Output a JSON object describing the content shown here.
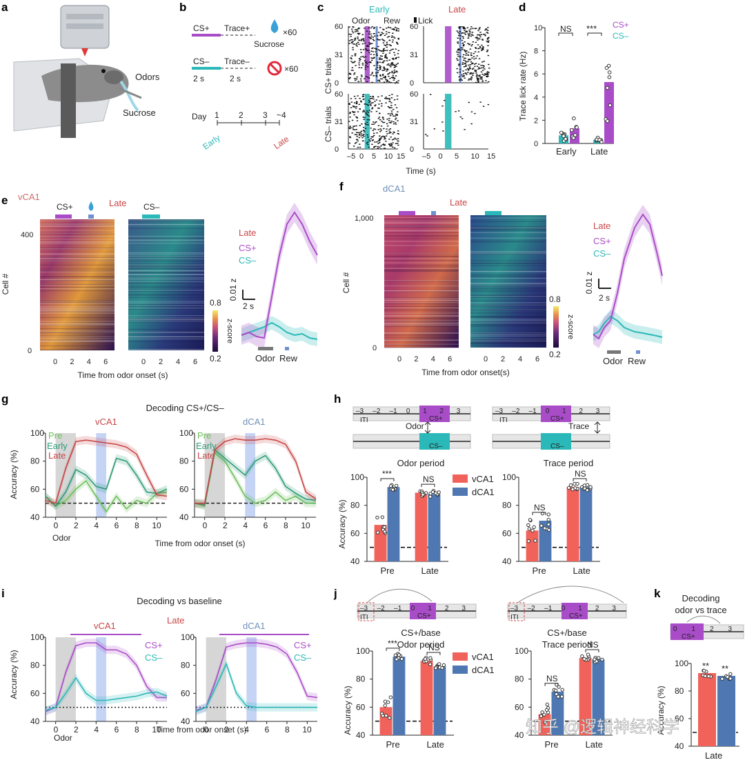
{
  "panels": {
    "a": {
      "letter": "a",
      "odors": "Odors",
      "sucrose": "Sucrose"
    },
    "b": {
      "letter": "b",
      "cs_plus": "CS+",
      "trace_plus": "Trace+",
      "x60a": "×60",
      "sucrose": "Sucrose",
      "cs_minus": "CS–",
      "trace_minus": "Trace–",
      "x60b": "×60",
      "dur1": "2 s",
      "dur2": "2 s",
      "day_label": "Day",
      "days": [
        "1",
        "2",
        "3",
        "~4"
      ],
      "early": "Early",
      "late": "Late"
    },
    "c": {
      "letter": "c",
      "early": "Early",
      "late": "Late",
      "odor": "Odor",
      "rew": "Rew",
      "lick": "Lick",
      "ylabel_top": "CS+ trials",
      "ylabel_bot": "CS– trials",
      "yticks": [
        "60",
        "31",
        "0"
      ],
      "xticks": [
        "–5",
        "0",
        "5",
        "10",
        "15"
      ],
      "xlabel": "Time (s)"
    },
    "d": {
      "letter": "d",
      "ylabel": "Trace lick rate (Hz)",
      "yticks": [
        "0",
        "2",
        "4",
        "6",
        "8",
        "10"
      ],
      "groups": [
        "Early",
        "Late"
      ],
      "ns": "NS",
      "sig": "***",
      "legend_plus": "CS+",
      "legend_minus": "CS–"
    },
    "e": {
      "letter": "e",
      "region": "vCA1",
      "late": "Late",
      "cs_plus": "CS+",
      "cs_minus": "CS–",
      "ylabel": "Cell #",
      "yticks": [
        "400",
        "0"
      ],
      "xticks": [
        "0",
        "2",
        "4",
        "6"
      ],
      "xlabel": "Time from odor onset (s)",
      "cbar_max": "0.8",
      "cbar_min": "0.2",
      "cbar_label": "z-score",
      "scale_y": "0.01 z",
      "scale_x": "2 s",
      "trace_late": "Late",
      "trace_plus": "CS+",
      "trace_minus": "CS–",
      "odor": "Odor",
      "rew": "Rew"
    },
    "f": {
      "letter": "f",
      "region": "dCA1",
      "late": "Late",
      "ylabel": "Cell #",
      "yticks": [
        "1,000",
        "0"
      ],
      "xticks": [
        "0",
        "2",
        "4",
        "6"
      ],
      "xlabel": "Time from odor onset(s)",
      "cbar_max": "0.8",
      "cbar_min": "0.2",
      "cbar_label": "z-score",
      "scale_y": "0.01 z",
      "scale_x": "2 s",
      "trace_late": "Late",
      "trace_plus": "CS+",
      "trace_minus": "CS–",
      "odor": "Odor",
      "rew": "Rew"
    },
    "g": {
      "letter": "g",
      "title": "Decoding CS+/CS–",
      "region1": "vCA1",
      "region2": "dCA1",
      "pre": "Pre",
      "early": "Early",
      "late": "Late",
      "ylabel": "Accuracy (%)",
      "yticks": [
        "40",
        "60",
        "80",
        "100"
      ],
      "xticks": [
        "0",
        "2",
        "4",
        "6",
        "8",
        "10"
      ],
      "odor": "Odor",
      "xlabel": "Time from odor onset (s)"
    },
    "h": {
      "letter": "h",
      "odor_period": "Odor period",
      "trace_period": "Trace period",
      "odor": "Odor",
      "trace": "Trace",
      "iti": "ITI",
      "cs_plus": "CS+",
      "cs_minus": "CS–",
      "timeline": [
        "–3",
        "–2",
        "–1",
        "0",
        "1",
        "2",
        "3"
      ],
      "legend1": "vCA1",
      "legend2": "dCA1",
      "ylabel": "Accuracy (%)",
      "yticks": [
        "40",
        "60",
        "80",
        "100"
      ],
      "groups": [
        "Pre",
        "Late"
      ],
      "sig": "***",
      "ns": "NS"
    },
    "i": {
      "letter": "i",
      "title": "Decoding vs baseline",
      "late": "Late",
      "region1": "vCA1",
      "region2": "dCA1",
      "cs_plus": "CS+",
      "cs_minus": "CS–",
      "ylabel": "Accuracy (%)",
      "yticks": [
        "40",
        "60",
        "80",
        "100"
      ],
      "xticks": [
        "0",
        "2",
        "4",
        "6",
        "8",
        "10"
      ],
      "odor": "Odor",
      "xlabel": "Time from odor onset (s)"
    },
    "j": {
      "letter": "j",
      "title1a": "CS+/base",
      "title1b": "Odor period",
      "title2a": "CS+/base",
      "title2b": "Trace period",
      "legend1": "vCA1",
      "legend2": "dCA1",
      "ylabel": "Accuracy (%)",
      "yticks": [
        "40",
        "60",
        "80",
        "100"
      ],
      "groups": [
        "Pre",
        "Late"
      ],
      "sig": "***",
      "ns": "NS",
      "iti": "ITI",
      "cs_plus": "CS+",
      "timeline": [
        "–3",
        "–2",
        "–1",
        "0",
        "1",
        "2",
        "3"
      ]
    },
    "k": {
      "letter": "k",
      "title1": "Decoding",
      "title2": "odor vs trace",
      "ylabel": "Accuracy (%)",
      "yticks": [
        "40",
        "60",
        "80",
        "100"
      ],
      "group": "Late",
      "sig1": "**",
      "sig2": "**",
      "cs_plus": "CS+",
      "timeline": [
        "0",
        "1",
        "2",
        "3"
      ]
    }
  },
  "watermark": "知乎 @逻辑神经科学",
  "colors": {
    "csplus": "#a94cc8",
    "csminus": "#2bb8b8",
    "vca1": "#f0625a",
    "dca1": "#4f78b3",
    "pre": "#6cbf5a",
    "early": "#2f9a78",
    "late": "#c84545"
  },
  "chart_data": [
    {
      "panel": "d",
      "type": "bar",
      "categories": [
        "Early",
        "Late"
      ],
      "series": [
        {
          "name": "CS+",
          "values": [
            1.3,
            5.3
          ]
        },
        {
          "name": "CS–",
          "values": [
            0.7,
            0.3
          ]
        }
      ],
      "ylim": [
        0,
        10
      ],
      "ylabel": "Trace lick rate (Hz)"
    },
    {
      "panel": "h-odor",
      "type": "bar",
      "categories": [
        "Pre",
        "Late"
      ],
      "series": [
        {
          "name": "vCA1",
          "values": [
            66,
            89
          ]
        },
        {
          "name": "dCA1",
          "values": [
            93,
            88
          ]
        }
      ],
      "ylim": [
        40,
        100
      ]
    },
    {
      "panel": "h-trace",
      "type": "bar",
      "categories": [
        "Pre",
        "Late"
      ],
      "series": [
        {
          "name": "vCA1",
          "values": [
            62,
            93
          ]
        },
        {
          "name": "dCA1",
          "values": [
            69,
            93
          ]
        }
      ],
      "ylim": [
        40,
        100
      ]
    },
    {
      "panel": "j-odor",
      "type": "bar",
      "categories": [
        "Pre",
        "Late"
      ],
      "series": [
        {
          "name": "vCA1",
          "values": [
            60,
            93
          ]
        },
        {
          "name": "dCA1",
          "values": [
            96,
            89
          ]
        }
      ],
      "ylim": [
        40,
        100
      ]
    },
    {
      "panel": "j-trace",
      "type": "bar",
      "categories": [
        "Pre",
        "Late"
      ],
      "series": [
        {
          "name": "vCA1",
          "values": [
            55,
            95
          ]
        },
        {
          "name": "dCA1",
          "values": [
            71,
            94
          ]
        }
      ],
      "ylim": [
        40,
        100
      ]
    },
    {
      "panel": "k",
      "type": "bar",
      "categories": [
        "Late"
      ],
      "series": [
        {
          "name": "vCA1",
          "values": [
            93
          ]
        },
        {
          "name": "dCA1",
          "values": [
            91
          ]
        }
      ],
      "ylim": [
        40,
        100
      ]
    },
    {
      "panel": "g-vCA1",
      "type": "line",
      "x": [
        -1,
        0,
        1,
        2,
        3,
        4,
        5,
        6,
        7,
        8,
        9,
        10,
        11
      ],
      "series": [
        {
          "name": "Pre",
          "values": [
            55,
            48,
            52,
            60,
            66,
            55,
            44,
            55,
            46,
            52,
            50,
            57,
            58
          ]
        },
        {
          "name": "Early",
          "values": [
            55,
            48,
            58,
            74,
            70,
            62,
            60,
            82,
            80,
            70,
            58,
            57,
            60
          ]
        },
        {
          "name": "Late",
          "values": [
            52,
            50,
            75,
            94,
            95,
            94,
            93,
            92,
            90,
            85,
            70,
            56,
            55
          ]
        }
      ],
      "ylim": [
        40,
        100
      ]
    },
    {
      "panel": "g-dCA1",
      "type": "line",
      "x": [
        -1,
        0,
        1,
        2,
        3,
        4,
        5,
        6,
        7,
        8,
        9,
        10,
        11
      ],
      "series": [
        {
          "name": "Pre",
          "values": [
            50,
            48,
            86,
            80,
            68,
            55,
            50,
            52,
            58,
            52,
            55,
            50,
            50
          ]
        },
        {
          "name": "Early",
          "values": [
            50,
            49,
            88,
            82,
            76,
            70,
            80,
            84,
            75,
            62,
            57,
            53,
            52
          ]
        },
        {
          "name": "Late",
          "values": [
            50,
            50,
            88,
            94,
            96,
            95,
            95,
            96,
            95,
            92,
            80,
            58,
            53
          ]
        }
      ],
      "ylim": [
        40,
        100
      ]
    },
    {
      "panel": "i-vCA1",
      "type": "line",
      "x": [
        -1,
        0,
        1,
        2,
        3,
        4,
        5,
        6,
        7,
        8,
        9,
        10,
        11
      ],
      "series": [
        {
          "name": "CS+",
          "values": [
            47,
            50,
            75,
            94,
            96,
            96,
            91,
            91,
            88,
            80,
            65,
            57,
            57
          ]
        },
        {
          "name": "CS–",
          "values": [
            48,
            50,
            60,
            71,
            60,
            55,
            55,
            56,
            57,
            58,
            60,
            61,
            58
          ]
        }
      ],
      "ylim": [
        40,
        100
      ]
    },
    {
      "panel": "i-dCA1",
      "type": "line",
      "x": [
        -1,
        0,
        1,
        2,
        3,
        4,
        5,
        6,
        7,
        8,
        9,
        10,
        11
      ],
      "series": [
        {
          "name": "CS+",
          "values": [
            48,
            50,
            70,
            93,
            95,
            96,
            96,
            95,
            93,
            88,
            75,
            58,
            57
          ]
        },
        {
          "name": "CS–",
          "values": [
            47,
            50,
            65,
            81,
            60,
            51,
            50,
            50,
            50,
            50,
            50,
            50,
            50
          ]
        }
      ],
      "ylim": [
        40,
        100
      ]
    }
  ]
}
